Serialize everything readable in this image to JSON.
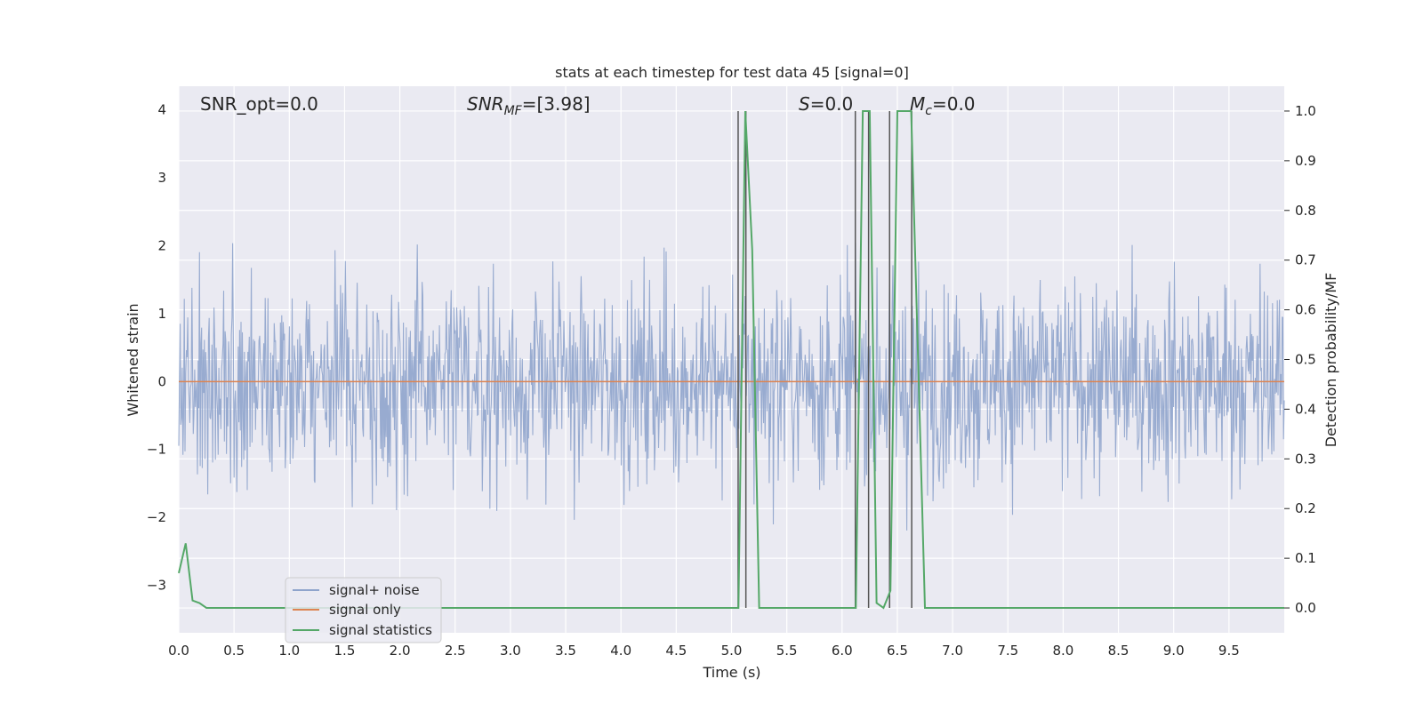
{
  "chart_data": {
    "type": "line",
    "title": "stats at each timestep for test data 45 [signal=0]",
    "xlabel": "Time (s)",
    "ylabel_left": "Whitened strain",
    "ylabel_right": "Detection probability/MF",
    "xlim": [
      0.0,
      10.0
    ],
    "ylim_left": [
      -3.7,
      4.35
    ],
    "ylim_right": [
      -0.05,
      1.05
    ],
    "x_ticks": [
      0.0,
      0.5,
      1.0,
      1.5,
      2.0,
      2.5,
      3.0,
      3.5,
      4.0,
      4.5,
      5.0,
      5.5,
      6.0,
      6.5,
      7.0,
      7.5,
      8.0,
      8.5,
      9.0,
      9.5
    ],
    "x_tick_labels": [
      "0.0",
      "0.5",
      "1.0",
      "1.5",
      "2.0",
      "2.5",
      "3.0",
      "3.5",
      "4.0",
      "4.5",
      "5.0",
      "5.5",
      "6.0",
      "6.5",
      "7.0",
      "7.5",
      "8.0",
      "8.5",
      "9.0",
      "9.5"
    ],
    "y_ticks_left": [
      -3,
      -2,
      -1,
      0,
      1,
      2,
      3,
      4
    ],
    "y_tick_labels_left": [
      "−3",
      "−2",
      "−1",
      "0",
      "1",
      "2",
      "3",
      "4"
    ],
    "y_ticks_right": [
      0.0,
      0.1,
      0.2,
      0.3,
      0.4,
      0.5,
      0.6,
      0.7,
      0.8,
      0.9,
      1.0
    ],
    "y_tick_labels_right": [
      "0.0",
      "0.1",
      "0.2",
      "0.3",
      "0.4",
      "0.5",
      "0.6",
      "0.7",
      "0.8",
      "0.9",
      "1.0"
    ],
    "grid": true,
    "legend_position": "lower-left",
    "series": [
      {
        "name": "signal+ noise",
        "axis": "left",
        "color": "#8fa4cc",
        "description_values": "noise trace approx. within [-3.3, 4.0]"
      },
      {
        "name": "signal only",
        "axis": "left",
        "color": "#dd8452",
        "x": [
          0.0,
          10.0
        ],
        "y": [
          0.0,
          0.0
        ]
      },
      {
        "name": "signal statistics",
        "axis": "right",
        "color": "#55a868",
        "x": [
          0.0,
          0.0625,
          0.125,
          0.1875,
          0.25,
          0.5,
          1.0,
          2.0,
          3.0,
          4.0,
          5.0,
          5.0625,
          5.125,
          5.1875,
          5.25,
          5.5,
          6.0,
          6.125,
          6.1875,
          6.25,
          6.3125,
          6.375,
          6.4375,
          6.5,
          6.5625,
          6.625,
          6.6875,
          6.75,
          7.0,
          8.0,
          9.0,
          10.0
        ],
        "y": [
          0.07,
          0.13,
          0.015,
          0.01,
          0.0,
          0.0,
          0.0,
          0.0,
          0.0,
          0.0,
          0.0,
          0.0,
          1.0,
          0.72,
          0.0,
          0.0,
          0.0,
          0.0,
          1.0,
          1.0,
          0.01,
          0.0,
          0.035,
          1.0,
          1.0,
          1.0,
          0.5,
          0.0,
          0.0,
          0.0,
          0.0,
          0.0
        ]
      }
    ],
    "vlines": [
      5.06,
      5.13,
      6.12,
      6.24,
      6.43,
      6.63
    ],
    "vline_color": "#555555",
    "annotations": [
      {
        "text": "SNR_opt=0.0"
      },
      {
        "text": "SNR_MF=[3.98]",
        "main": "SNR",
        "sub": "MF",
        "rest": "=[3.98]"
      },
      {
        "text": "S=0.0",
        "main": "S",
        "rest": "=0.0"
      },
      {
        "text": "M_c=0.0",
        "main": "M",
        "sub": "c",
        "rest": "=0.0"
      }
    ],
    "colors": {
      "background": "#eaeaf2",
      "grid": "#ffffff",
      "noise": "#8fa4cc",
      "signal": "#dd8452",
      "stat": "#55a868"
    }
  }
}
